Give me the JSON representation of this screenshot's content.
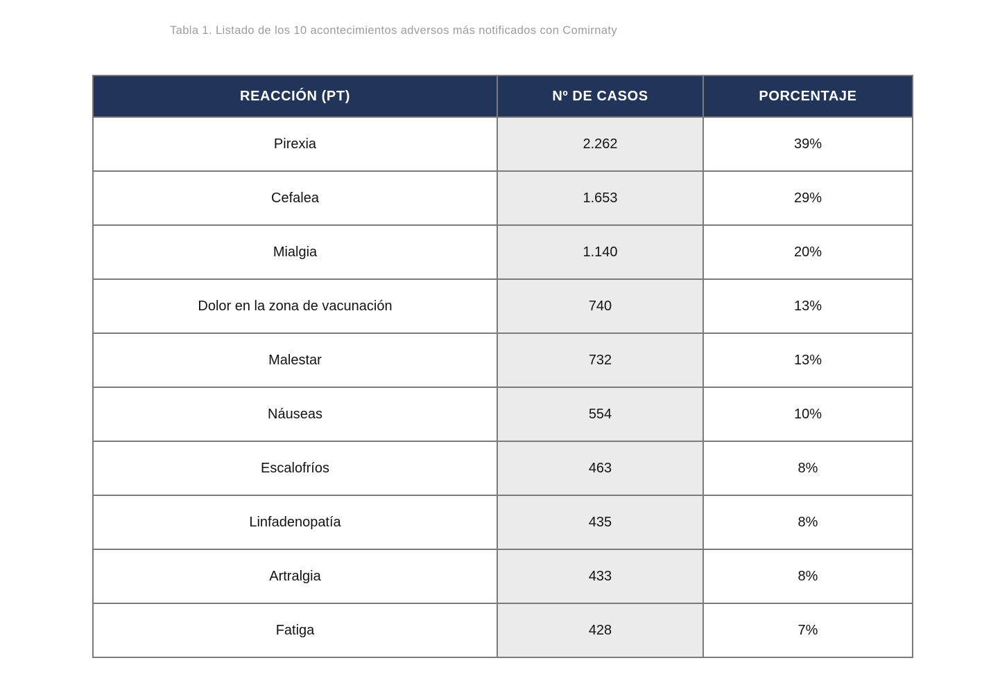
{
  "page": {
    "title": "Tabla 1. Listado de los 10 acontecimientos adversos más notificados con Comirnaty"
  },
  "table": {
    "columns": [
      "REACCIÓN (PT)",
      "Nº DE CASOS",
      "PORCENTAJE"
    ],
    "rows": [
      {
        "reaction": "Pirexia",
        "cases": "2.262",
        "percentage": "39%"
      },
      {
        "reaction": "Cefalea",
        "cases": "1.653",
        "percentage": "29%"
      },
      {
        "reaction": "Mialgia",
        "cases": "1.140",
        "percentage": "20%"
      },
      {
        "reaction": "Dolor en la zona de vacunación",
        "cases": "740",
        "percentage": "13%"
      },
      {
        "reaction": "Malestar",
        "cases": "732",
        "percentage": "13%"
      },
      {
        "reaction": "Náuseas",
        "cases": "554",
        "percentage": "10%"
      },
      {
        "reaction": "Escalofríos",
        "cases": "463",
        "percentage": "8%"
      },
      {
        "reaction": "Linfadenopatía",
        "cases": "435",
        "percentage": "8%"
      },
      {
        "reaction": "Artralgia",
        "cases": "433",
        "percentage": "8%"
      },
      {
        "reaction": "Fatiga",
        "cases": "428",
        "percentage": "7%"
      }
    ]
  },
  "colors": {
    "header_bg": "#21345a",
    "border": "#7a7a7a",
    "cases_col_bg": "#ebebeb",
    "title_text": "#9c9c9c",
    "cell_text": "#121212"
  },
  "chart_data": {
    "type": "table",
    "title": "Tabla 1. Listado de los 10 acontecimientos adversos más notificados con Comirnaty",
    "columns": [
      "REACCIÓN (PT)",
      "Nº DE CASOS",
      "PORCENTAJE"
    ],
    "categories": [
      "Pirexia",
      "Cefalea",
      "Mialgia",
      "Dolor en la zona de vacunación",
      "Malestar",
      "Náuseas",
      "Escalofríos",
      "Linfadenopatía",
      "Artralgia",
      "Fatiga"
    ],
    "series": [
      {
        "name": "Nº de casos",
        "values": [
          2262,
          1653,
          1140,
          740,
          732,
          554,
          463,
          435,
          433,
          428
        ]
      },
      {
        "name": "Porcentaje",
        "values": [
          39,
          29,
          20,
          13,
          13,
          10,
          8,
          8,
          8,
          7
        ]
      }
    ]
  }
}
